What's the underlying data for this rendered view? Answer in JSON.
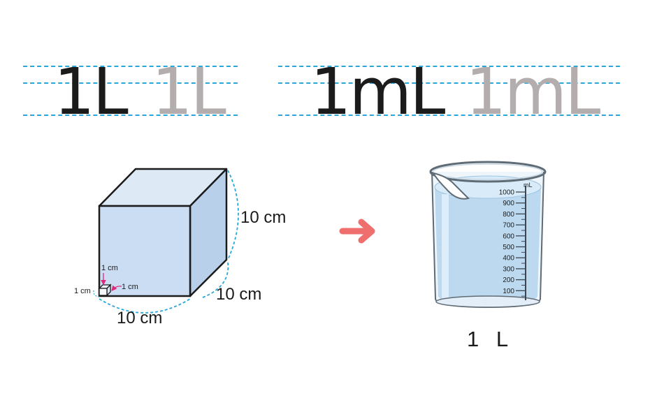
{
  "writing_practice": {
    "liter": {
      "bold": "1L",
      "trace": "1L"
    },
    "milliliter": {
      "bold": "1mL",
      "trace": "1mL"
    }
  },
  "cube": {
    "edge_height": "10 cm",
    "edge_depth": "10 cm",
    "edge_width": "10 cm",
    "small_cube_top": "1 cm",
    "small_cube_left": "1 cm",
    "small_cube_right": "1 cm"
  },
  "arrow": {
    "color": "#ef6f6f"
  },
  "beaker": {
    "unit": "mL",
    "ticks": [
      "1000",
      "900",
      "800",
      "700",
      "600",
      "500",
      "400",
      "300",
      "200",
      "100"
    ],
    "caption": "1 L"
  },
  "colors": {
    "guide_line": "#2aa6d8",
    "dark_text": "#1b1b1b",
    "trace_text": "#b3adad",
    "small_cube_arrows": "#e0287a"
  }
}
